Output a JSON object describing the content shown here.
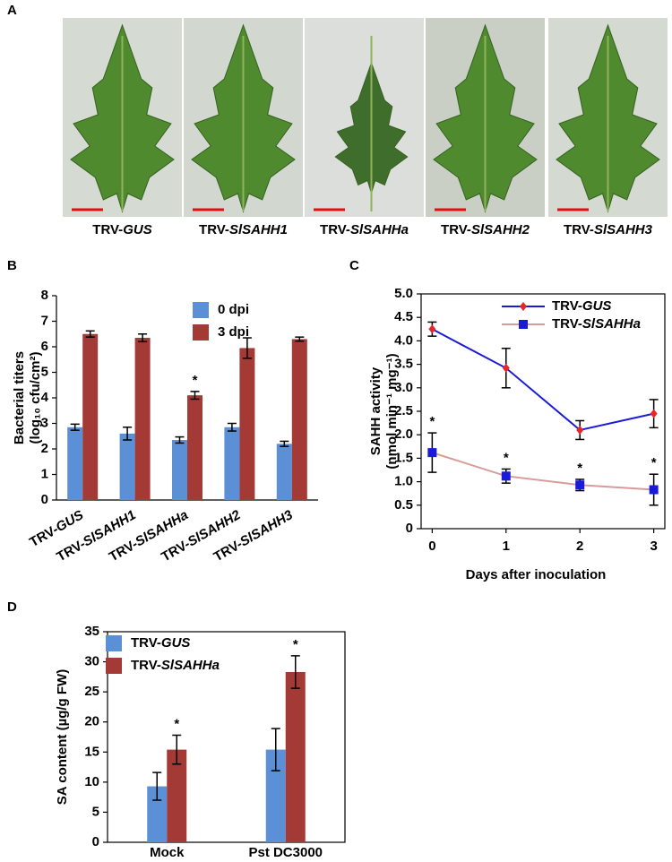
{
  "panel_a": {
    "label": "A",
    "captions": [
      "TRV-GUS",
      "TRV-SlSAHH1",
      "TRV-SlSAHHa",
      "TRV-SlSAHH2",
      "TRV-SlSAHH3"
    ]
  },
  "chart_data": [
    {
      "type": "bar",
      "label": "B",
      "y_label": [
        "Bacterial titers",
        "(log₁₀ cfu/cm²)"
      ],
      "categories": [
        "TRV-GUS",
        "TRV-SlSAHH1",
        "TRV-SlSAHHa",
        "TRV-SlSAHH2",
        "TRV-SlSAHH3"
      ],
      "series": [
        {
          "name": "0 dpi",
          "color": "#5b8fd6",
          "values": [
            2.85,
            2.6,
            2.35,
            2.85,
            2.2
          ],
          "errors": [
            0.12,
            0.25,
            0.12,
            0.15,
            0.1
          ],
          "annotations": [
            null,
            null,
            null,
            null,
            null
          ]
        },
        {
          "name": "3 dpi",
          "color": "#a33a36",
          "values": [
            6.5,
            6.35,
            4.1,
            5.95,
            6.3
          ],
          "errors": [
            0.12,
            0.15,
            0.15,
            0.4,
            0.08
          ],
          "annotations": [
            null,
            null,
            "*",
            null,
            null
          ]
        }
      ],
      "ylim": [
        0,
        8
      ],
      "yticks": [
        0,
        1,
        2,
        3,
        4,
        5,
        6,
        7,
        8
      ],
      "legend": "top",
      "box": false
    },
    {
      "type": "line",
      "label": "C",
      "y_label": [
        "SAHH activity",
        "(nmol min⁻¹ mg⁻¹)"
      ],
      "x_label": "Days after inoculation",
      "x": [
        0,
        1,
        2,
        3
      ],
      "xlim": [
        -0.15,
        3.15
      ],
      "xticks": [
        0,
        1,
        2,
        3
      ],
      "series": [
        {
          "name": "TRV-GUS",
          "color": "#1a1adb",
          "marker_color": "#e8262a",
          "marker": "diamond",
          "values": [
            4.25,
            3.42,
            2.1,
            2.45
          ],
          "errors": [
            0.15,
            0.42,
            0.2,
            0.3
          ],
          "annotations": [
            null,
            null,
            null,
            null
          ]
        },
        {
          "name": "TRV-SlSAHHa",
          "color": "#d99a9a",
          "marker_color": "#1a1adb",
          "marker": "square",
          "values": [
            1.62,
            1.12,
            0.93,
            0.83
          ],
          "errors": [
            0.42,
            0.15,
            0.12,
            0.33
          ],
          "annotations": [
            "*",
            "*",
            "*",
            "*"
          ]
        }
      ],
      "ylim": [
        0,
        5
      ],
      "yticks": [
        0,
        0.5,
        {
          "value": 1,
          "label": "1.0"
        },
        1.5,
        {
          "value": 2,
          "label": "2.0"
        },
        2.5,
        {
          "value": 3,
          "label": "3.0"
        },
        3.5,
        {
          "value": 4,
          "label": "4.0"
        },
        4.5,
        {
          "value": 5,
          "label": "5.0"
        }
      ],
      "legend": "top-right",
      "box": true
    },
    {
      "type": "bar",
      "label": "D",
      "y_label": [
        "SA content (µg/g FW)"
      ],
      "categories": [
        "Mock",
        "Pst DC3000"
      ],
      "series": [
        {
          "name": "TRV-GUS",
          "color": "#5b8fd6",
          "values": [
            9.3,
            15.4
          ],
          "errors": [
            2.3,
            3.5
          ],
          "annotations": [
            null,
            null
          ]
        },
        {
          "name": "TRV-SlSAHHa",
          "color": "#a33a36",
          "values": [
            15.4,
            28.3
          ],
          "errors": [
            2.4,
            2.7
          ],
          "annotations": [
            "*",
            "*"
          ]
        }
      ],
      "ylim": [
        0,
        35
      ],
      "yticks": [
        0,
        5,
        10,
        15,
        20,
        25,
        30,
        35
      ],
      "legend": "top-left",
      "box": true
    }
  ]
}
